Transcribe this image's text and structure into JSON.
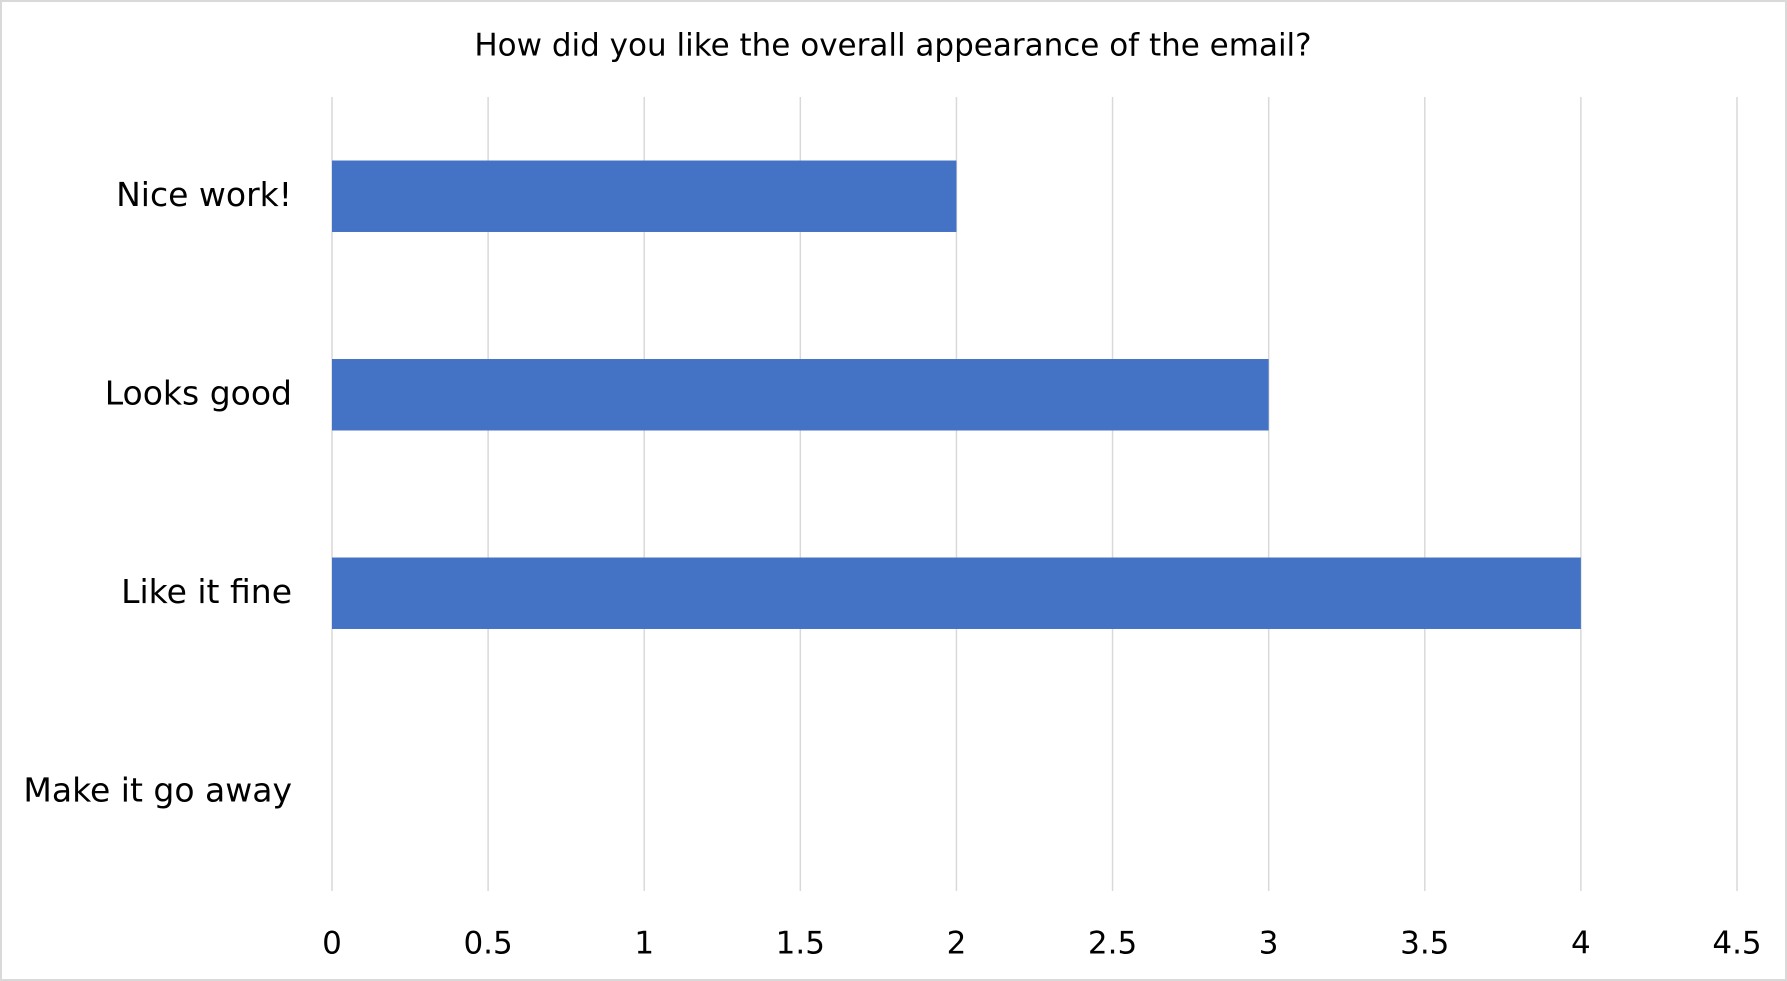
{
  "chart_data": {
    "type": "barh",
    "title": "How did you like the overall appearance of the email?",
    "categories": [
      "Nice work!",
      "Looks good",
      "Like it fine",
      "Make it go away"
    ],
    "values": [
      2,
      3,
      4,
      0
    ],
    "color": "#4472c4",
    "xlim": [
      0,
      4.5
    ],
    "xticks": [
      0,
      0.5,
      1,
      1.5,
      2,
      2.5,
      3,
      3.5,
      4,
      4.5
    ],
    "grid": true
  }
}
